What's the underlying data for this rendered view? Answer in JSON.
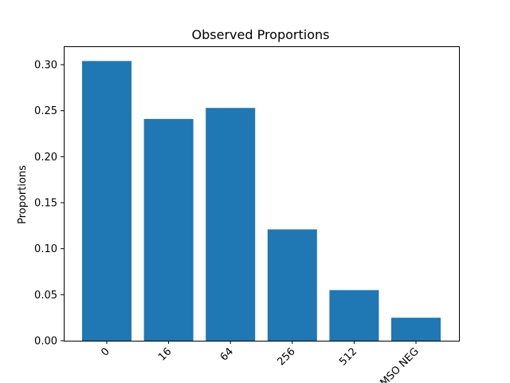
{
  "chart_data": {
    "type": "bar",
    "title": "Observed Proportions",
    "xlabel": "",
    "ylabel": "Proportions",
    "categories": [
      "0",
      "16",
      "64",
      "256",
      "512",
      "MSO NEG"
    ],
    "values": [
      0.304,
      0.241,
      0.253,
      0.121,
      0.055,
      0.025
    ],
    "ylim": [
      0,
      0.32
    ],
    "yticks": [
      "0.00",
      "0.05",
      "0.10",
      "0.15",
      "0.20",
      "0.25",
      "0.30"
    ],
    "ytick_values": [
      0,
      0.05,
      0.1,
      0.15,
      0.2,
      0.25,
      0.3
    ],
    "grid": false,
    "legend": "none",
    "bar_color": "#1f77b4",
    "xtick_rotation_deg": 45
  }
}
